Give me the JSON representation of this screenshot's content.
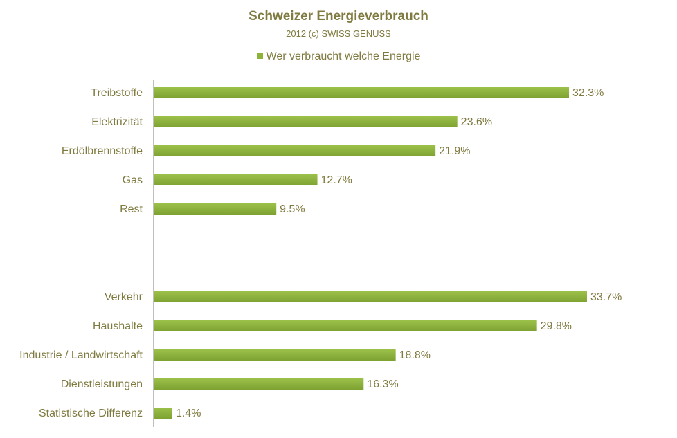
{
  "chart_data": {
    "type": "bar",
    "orientation": "horizontal",
    "title": "Schweizer Energieverbrauch",
    "subtitle": "2012 (c) SWISS GENUSS",
    "series": [
      {
        "name": "Wer verbraucht welche Energie",
        "color": "#8db33a"
      }
    ],
    "groups": [
      {
        "categories": [
          "Treibstoffe",
          "Elektrizität",
          "Erdölbrennstoffe",
          "Gas",
          "Rest"
        ],
        "values": [
          32.3,
          23.6,
          21.9,
          12.7,
          9.5
        ],
        "labels": [
          "32.3%",
          "23.6%",
          "21.9%",
          "12.7%",
          "9.5%"
        ]
      },
      {
        "categories": [
          "Verkehr",
          "Haushalte",
          "Industrie / Landwirtschaft",
          "Dienstleistungen",
          "Statistische Differenz"
        ],
        "values": [
          33.7,
          29.8,
          18.8,
          16.3,
          1.4
        ],
        "labels": [
          "33.7%",
          "29.8%",
          "18.8%",
          "16.3%",
          "1.4%"
        ]
      }
    ],
    "xlim": [
      0,
      33.7
    ],
    "grid": false,
    "legend_position": "top",
    "text_color": "#7f7a3f",
    "axis_color": "#7f7f7f"
  }
}
